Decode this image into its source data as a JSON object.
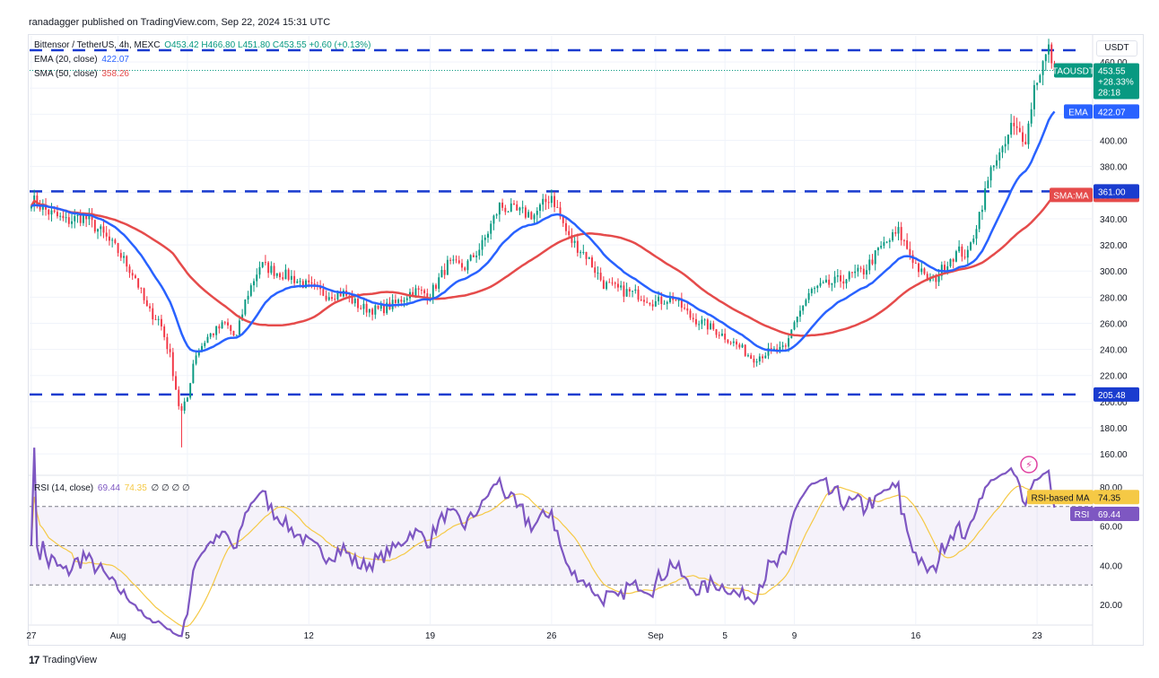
{
  "header": {
    "publisher": "ranadagger published on TradingView.com, Sep 22, 2024 15:31 UTC"
  },
  "footer": {
    "brand_mark": "17",
    "brand_name": "TradingView"
  },
  "legend": {
    "symbol": "Bittensor / TetherUS, 4h, MEXC",
    "ohlc": "O453.42 H466.80 L451.80 C453.55 +0.60 (+0.13%)",
    "ema_label": "EMA (20, close)",
    "ema_value": "422.07",
    "sma_label": "SMA (50, close)",
    "sma_value": "358.26",
    "rsi_label": "RSI (14, close)",
    "rsi_value": "69.44",
    "rsi_ma_value": "74.35",
    "rsi_extra": "∅ ∅ ∅ ∅"
  },
  "axis": {
    "currency": "USDT"
  },
  "colors": {
    "up": "#089981",
    "down": "#f23645",
    "ema": "#2962ff",
    "sma": "#e54b4b",
    "rsi": "#7e57c2",
    "rsi_ma": "#f5c945",
    "level": "#1a3ccf"
  },
  "chart_data": [
    {
      "type": "candlestick",
      "title": "Bittensor / TetherUS, 4h, MEXC",
      "ylim": [
        145,
        480
      ],
      "yticks": [
        160,
        180,
        200,
        220,
        240,
        260,
        280,
        300,
        320,
        340,
        360,
        380,
        400,
        420,
        440,
        460
      ],
      "ytick_labels": [
        "160.00",
        "180.00",
        "200.00",
        "220.00",
        "240.00",
        "260.00",
        "280.00",
        "300.00",
        "320.00",
        "340.00",
        "360.00",
        "380.00",
        "400.00",
        "420.00",
        "440.00",
        "460.00"
      ],
      "xticks": [
        {
          "label": "27",
          "day": -4
        },
        {
          "label": "Aug",
          "day": 1
        },
        {
          "label": "5",
          "day": 5
        },
        {
          "label": "12",
          "day": 12
        },
        {
          "label": "19",
          "day": 19
        },
        {
          "label": "26",
          "day": 26
        },
        {
          "label": "Sep",
          "day": 32
        },
        {
          "label": "5",
          "day": 36
        },
        {
          "label": "9",
          "day": 40
        },
        {
          "label": "16",
          "day": 47
        },
        {
          "label": "23",
          "day": 54
        }
      ],
      "x_range_days": [
        -4.1,
        57.2
      ],
      "current_price": 453.55,
      "horizontal_levels": [
        {
          "name": "resistance-high",
          "value": 469,
          "label": ""
        },
        {
          "name": "resistance-361",
          "value": 361.0,
          "label": "361.00"
        },
        {
          "name": "support-205",
          "value": 205.48,
          "label": "205.48"
        }
      ],
      "price_tags": [
        {
          "name": "taousdt-tag",
          "label": "TAOUSDT",
          "value": "453.55",
          "change": "+28.33%",
          "countdown": "28:18"
        },
        {
          "name": "ema-tag",
          "label": "EMA",
          "value": "422.07"
        },
        {
          "name": "sma-tag",
          "label": "SMA:MA",
          "value": "358.26"
        }
      ],
      "anchors": [
        [
          -4.0,
          355
        ],
        [
          -3.0,
          345
        ],
        [
          -2.0,
          338
        ],
        [
          -1.0,
          342
        ],
        [
          0.0,
          330
        ],
        [
          1.0,
          315
        ],
        [
          2.0,
          295
        ],
        [
          2.7,
          270
        ],
        [
          3.4,
          262
        ],
        [
          4.0,
          235
        ],
        [
          4.6,
          190
        ],
        [
          5.0,
          203
        ],
        [
          5.4,
          235
        ],
        [
          6.2,
          250
        ],
        [
          7.2,
          260
        ],
        [
          7.8,
          248
        ],
        [
          8.4,
          280
        ],
        [
          9.2,
          305
        ],
        [
          10.0,
          300
        ],
        [
          11.0,
          295
        ],
        [
          12.0,
          288
        ],
        [
          13.0,
          282
        ],
        [
          14.0,
          283
        ],
        [
          15.0,
          272
        ],
        [
          16.0,
          270
        ],
        [
          17.0,
          275
        ],
        [
          18.0,
          285
        ],
        [
          19.0,
          282
        ],
        [
          20.0,
          305
        ],
        [
          21.0,
          303
        ],
        [
          22.0,
          320
        ],
        [
          23.0,
          350
        ],
        [
          24.0,
          345
        ],
        [
          25.0,
          343
        ],
        [
          26.0,
          358
        ],
        [
          27.0,
          325
        ],
        [
          28.0,
          312
        ],
        [
          29.0,
          290
        ],
        [
          30.0,
          285
        ],
        [
          31.0,
          282
        ],
        [
          32.0,
          276
        ],
        [
          33.0,
          280
        ],
        [
          34.0,
          265
        ],
        [
          35.0,
          258
        ],
        [
          36.0,
          250
        ],
        [
          37.0,
          240
        ],
        [
          37.6,
          233
        ],
        [
          38.5,
          238
        ],
        [
          39.5,
          240
        ],
        [
          40.0,
          262
        ],
        [
          41.0,
          285
        ],
        [
          42.0,
          290
        ],
        [
          43.0,
          295
        ],
        [
          44.0,
          300
        ],
        [
          45.0,
          318
        ],
        [
          46.0,
          330
        ],
        [
          47.0,
          305
        ],
        [
          47.5,
          295
        ],
        [
          48.0,
          292
        ],
        [
          49.0,
          310
        ],
        [
          49.5,
          315
        ],
        [
          50.0,
          312
        ],
        [
          51.0,
          360
        ],
        [
          51.5,
          385
        ],
        [
          52.0,
          390
        ],
        [
          52.5,
          410
        ],
        [
          53.0,
          405
        ],
        [
          53.4,
          402
        ],
        [
          53.8,
          440
        ],
        [
          54.2,
          455
        ],
        [
          54.7,
          470
        ],
        [
          55.0,
          453.55
        ]
      ],
      "rsi": {
        "ylim": [
          10,
          85
        ],
        "yticks": [
          20,
          40,
          60,
          80
        ],
        "ytick_labels": [
          "20.00",
          "40.00",
          "60.00",
          "80.00"
        ],
        "overbought": 70,
        "oversold": 30,
        "last_rsi": 69.44,
        "last_rsi_ma": 74.35,
        "tags": [
          {
            "name": "rsi-ma-tag",
            "label": "RSI-based MA",
            "value": "74.35"
          },
          {
            "name": "rsi-tag",
            "label": "RSI",
            "value": "69.44"
          }
        ]
      }
    }
  ]
}
